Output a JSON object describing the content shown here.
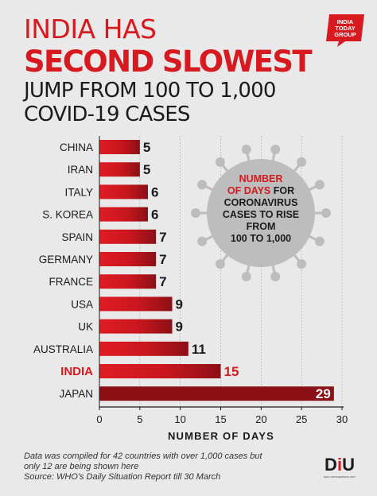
{
  "header": {
    "line1": "INDIA HAS",
    "line2": "SECOND SLOWEST",
    "line3": "JUMP FROM 100 TO 1,000",
    "line4": "COVID-19 CASES"
  },
  "logo": {
    "line1": "INDIA",
    "line2": "TODAY",
    "line3": "GROUP"
  },
  "callout": {
    "line1": "NUMBER",
    "line2_red": "OF DAYS",
    "line2_dark": " FOR",
    "line3": "CORONAVIRUS",
    "line4": "CASES TO RISE",
    "line5": "FROM",
    "line6": "100 TO 1,000"
  },
  "footer": {
    "line1": "Data was compiled for 42 countries with over 1,000 cases but",
    "line2": "only 12 are being shown here",
    "line3": "Source: WHO's Daily Situation Report till 30 March"
  },
  "badge": {
    "main_pre": "D",
    "main_i": "i",
    "main_post": "U",
    "sub": "DAILY INFOGRAPHICS UNIT"
  },
  "colors": {
    "accent": "#d71920",
    "highlight_label": "#d71920",
    "bar_dark": "#8b1016",
    "text_dark": "#1b1b1b",
    "background": "#e9e9e9"
  },
  "chart_data": {
    "type": "bar",
    "orientation": "horizontal",
    "categories": [
      "CHINA",
      "IRAN",
      "ITALY",
      "S. KOREA",
      "SPAIN",
      "GERMANY",
      "FRANCE",
      "USA",
      "UK",
      "AUSTRALIA",
      "INDIA",
      "JAPAN"
    ],
    "values": [
      5,
      5,
      6,
      6,
      7,
      7,
      7,
      9,
      9,
      11,
      15,
      29
    ],
    "highlight": "INDIA",
    "xlabel": "NUMBER OF DAYS",
    "ylabel": "",
    "xlim": [
      0,
      30
    ],
    "xticks": [
      0,
      5,
      10,
      15,
      20,
      25,
      30
    ],
    "grid": true,
    "legend": "none"
  }
}
